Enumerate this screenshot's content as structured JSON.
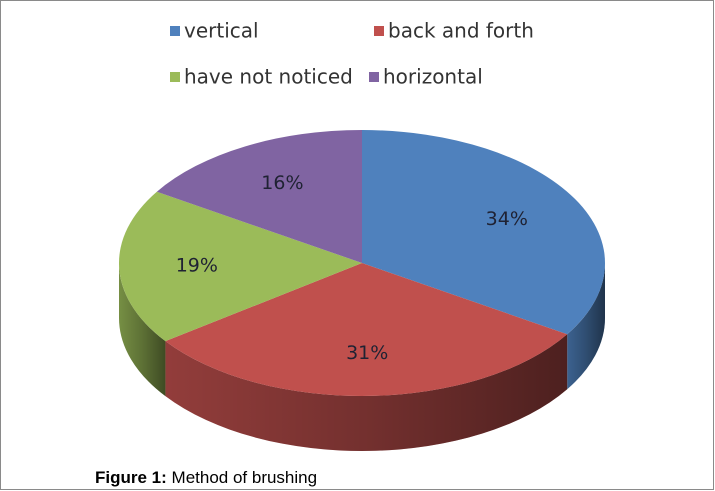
{
  "chart_data": {
    "type": "pie",
    "categories": [
      "vertical",
      "back and forth",
      "have not noticed",
      "horizontal"
    ],
    "values": [
      34,
      31,
      19,
      16
    ],
    "value_labels": [
      "34%",
      "31%",
      "19%",
      "16%"
    ],
    "colors": [
      "#4f81bd",
      "#c0504d",
      "#9bbb59",
      "#8064a2"
    ],
    "legend": "top"
  },
  "figure": {
    "label": "Figure 1:",
    "text": "Method of brushing"
  }
}
